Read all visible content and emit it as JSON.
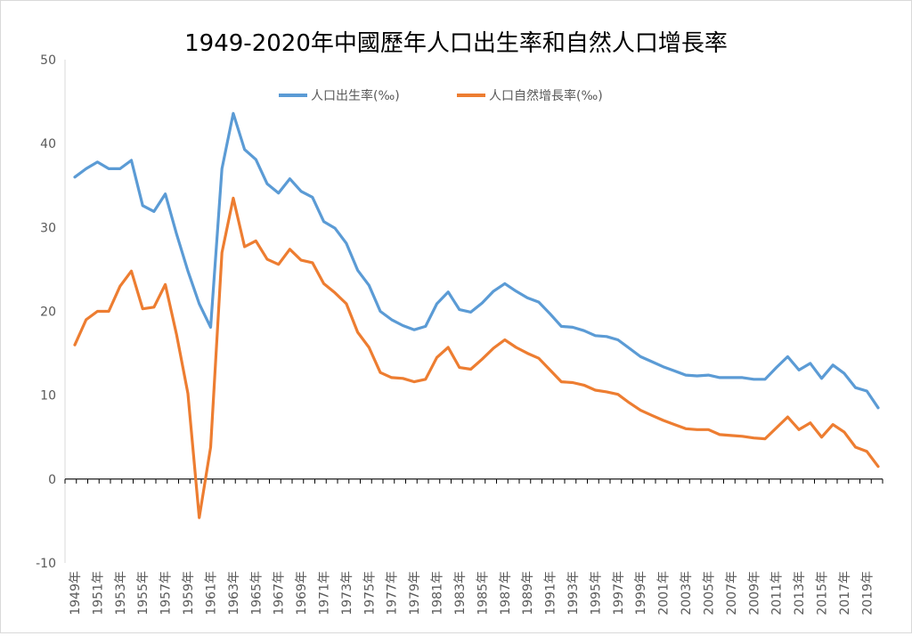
{
  "chart_data": {
    "type": "line",
    "title": "1949-2020年中國歷年人口出生率和自然人口增長率",
    "x": [
      1949,
      1950,
      1951,
      1952,
      1953,
      1954,
      1955,
      1956,
      1957,
      1958,
      1959,
      1960,
      1961,
      1962,
      1963,
      1964,
      1965,
      1966,
      1967,
      1968,
      1969,
      1970,
      1971,
      1972,
      1973,
      1974,
      1975,
      1976,
      1977,
      1978,
      1979,
      1980,
      1981,
      1982,
      1983,
      1984,
      1985,
      1986,
      1987,
      1988,
      1989,
      1990,
      1991,
      1992,
      1993,
      1994,
      1995,
      1996,
      1997,
      1998,
      1999,
      2000,
      2001,
      2002,
      2003,
      2004,
      2005,
      2006,
      2007,
      2008,
      2009,
      2010,
      2011,
      2012,
      2013,
      2014,
      2015,
      2016,
      2017,
      2018,
      2019,
      2020
    ],
    "x_tick_labels": [
      "1949年",
      "1951年",
      "1953年",
      "1955年",
      "1957年",
      "1959年",
      "1961年",
      "1963年",
      "1965年",
      "1967年",
      "1969年",
      "1971年",
      "1973年",
      "1975年",
      "1977年",
      "1979年",
      "1981年",
      "1983年",
      "1985年",
      "1987年",
      "1989年",
      "1991年",
      "1993年",
      "1995年",
      "1997年",
      "1999年",
      "2001年",
      "2003年",
      "2005年",
      "2007年",
      "2009年",
      "2011年",
      "2013年",
      "2015年",
      "2017年",
      "2019年"
    ],
    "ylim": [
      -10,
      50
    ],
    "y_ticks": [
      -10,
      0,
      10,
      20,
      30,
      40,
      50
    ],
    "legend_position": "top-center",
    "series": [
      {
        "name": "人口出生率(‰)",
        "color": "#5b9bd5",
        "values": [
          36.0,
          37.0,
          37.8,
          37.0,
          37.0,
          38.0,
          32.6,
          31.9,
          34.0,
          29.2,
          24.8,
          20.9,
          18.1,
          37.0,
          43.6,
          39.3,
          38.1,
          35.2,
          34.1,
          35.8,
          34.3,
          33.6,
          30.7,
          29.9,
          28.1,
          24.9,
          23.1,
          20.0,
          19.0,
          18.3,
          17.8,
          18.2,
          20.9,
          22.3,
          20.2,
          19.9,
          21.0,
          22.4,
          23.3,
          22.4,
          21.6,
          21.1,
          19.7,
          18.2,
          18.1,
          17.7,
          17.1,
          17.0,
          16.6,
          15.6,
          14.6,
          14.0,
          13.4,
          12.9,
          12.4,
          12.3,
          12.4,
          12.1,
          12.1,
          12.1,
          11.9,
          11.9,
          13.3,
          14.6,
          13.0,
          13.8,
          12.0,
          13.6,
          12.6,
          10.9,
          10.5,
          8.5
        ]
      },
      {
        "name": "人口自然增長率(‰)",
        "color": "#ed7d31",
        "values": [
          16.0,
          19.0,
          20.0,
          20.0,
          23.0,
          24.8,
          20.3,
          20.5,
          23.2,
          17.2,
          10.2,
          -4.6,
          3.8,
          27.0,
          33.5,
          27.7,
          28.4,
          26.2,
          25.6,
          27.4,
          26.1,
          25.8,
          23.3,
          22.2,
          20.9,
          17.5,
          15.7,
          12.7,
          12.1,
          12.0,
          11.6,
          11.9,
          14.5,
          15.7,
          13.3,
          13.1,
          14.3,
          15.6,
          16.6,
          15.7,
          15.0,
          14.4,
          13.0,
          11.6,
          11.5,
          11.2,
          10.6,
          10.4,
          10.1,
          9.1,
          8.2,
          7.6,
          7.0,
          6.5,
          6.0,
          5.9,
          5.9,
          5.3,
          5.2,
          5.1,
          4.9,
          4.8,
          6.1,
          7.4,
          5.9,
          6.7,
          5.0,
          6.5,
          5.6,
          3.8,
          3.3,
          1.5
        ]
      }
    ]
  }
}
